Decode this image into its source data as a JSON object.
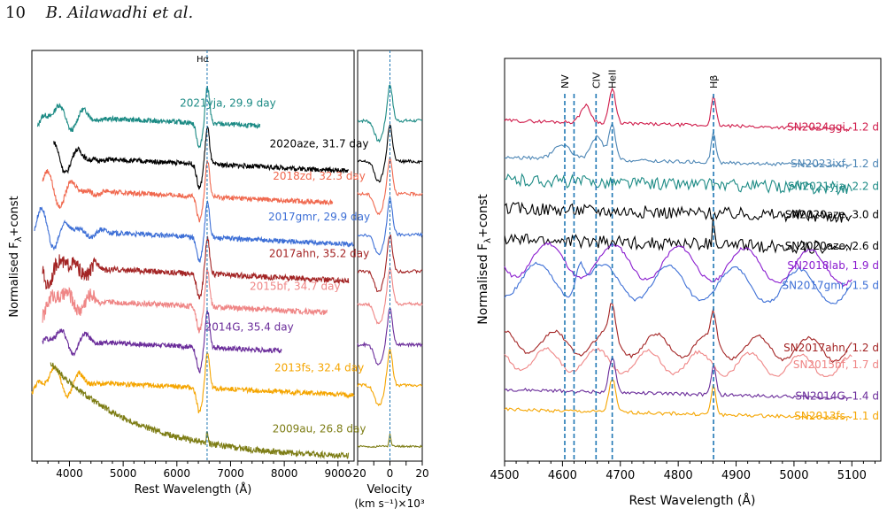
{
  "header": {
    "page_number": "10",
    "authors": "B. Ailawadhi et al."
  },
  "colors": {
    "2021yja": "#1b8a84",
    "2020aze": "#000000",
    "2018zd": "#f0684e",
    "2017gmr": "#3d6fd6",
    "2017ahn": "#a32424",
    "2015bf": "#ef8686",
    "2014G": "#6a2c9a",
    "2013fs": "#f5a500",
    "2009au": "#7d7d15",
    "2024ggi": "#d01c4b",
    "2023ixf": "#4d86b5",
    "2018lab": "#8a1ccf"
  },
  "chart_data": [
    {
      "type": "line",
      "panel": "left",
      "xlabel": "Rest Wavelength (Å)",
      "ylabel": "Normalised F",
      "ylabel_sub": "λ",
      "ylabel_suffix": "+const",
      "xlim": [
        3300,
        9300
      ],
      "xticks": [
        4000,
        5000,
        6000,
        7000,
        8000,
        9000
      ],
      "vline": {
        "x": 6563,
        "label": "Hα"
      },
      "series": [
        {
          "label": "2021yja, 29.9 day",
          "key": "2021yja",
          "x_range": [
            3400,
            7550
          ],
          "offset": 8.1
        },
        {
          "label": "2020aze, 31.7 day",
          "key": "2020aze",
          "x_range": [
            3700,
            9200
          ],
          "offset": 7.1
        },
        {
          "label": "2018zd, 32.3 day",
          "key": "2018zd",
          "x_range": [
            3500,
            8900
          ],
          "offset": 6.3
        },
        {
          "label": "2017gmr, 29.9 day",
          "key": "2017gmr",
          "x_range": [
            3350,
            9300
          ],
          "offset": 5.3
        },
        {
          "label": "2017ahn, 35.2 day",
          "key": "2017ahn",
          "x_range": [
            3500,
            9200
          ],
          "offset": 4.4
        },
        {
          "label": "2015bf, 34.7 day",
          "key": "2015bf",
          "x_range": [
            3500,
            8800
          ],
          "offset": 3.6
        },
        {
          "label": "2014G, 35.4 day",
          "key": "2014G",
          "x_range": [
            3500,
            7950
          ],
          "offset": 2.6
        },
        {
          "label": "2013fs, 32.4 day",
          "key": "2013fs",
          "x_range": [
            3300,
            9300
          ],
          "offset": 1.6
        },
        {
          "label": "2009au, 26.8 day",
          "key": "2009au",
          "x_range": [
            3650,
            9200
          ],
          "offset": 0.1
        }
      ]
    },
    {
      "type": "line",
      "panel": "velocity",
      "xlabel_line1": "Velocity",
      "xlabel_line2": "(km s⁻¹)×10³",
      "xlim": [
        -20,
        20
      ],
      "xticks": [
        -20,
        -10,
        0,
        10,
        20
      ],
      "vline": {
        "x": 0
      }
    },
    {
      "type": "line",
      "panel": "right",
      "xlabel": "Rest Wavelength (Å)",
      "ylabel": "Normalised F",
      "ylabel_sub": "λ",
      "ylabel_suffix": "+const",
      "xlim": [
        4500,
        5150
      ],
      "xticks": [
        4500,
        4600,
        4700,
        4800,
        4900,
        5000,
        5100
      ],
      "lines": [
        {
          "x": 4604,
          "label": "NV"
        },
        {
          "x": 4620,
          "label": ""
        },
        {
          "x": 4658,
          "label": "CIV"
        },
        {
          "x": 4686,
          "label": "HeII"
        },
        {
          "x": 4861,
          "label": "Hβ"
        }
      ],
      "series": [
        {
          "label": "SN2024ggi, 1.2 d",
          "key": "2024ggi",
          "offset": 11.4
        },
        {
          "label": "SN2023ixf, 1.2 d",
          "key": "2023ixf",
          "offset": 10.1
        },
        {
          "label": "SN2021yja, 2.2 d",
          "key": "2021yja",
          "offset": 9.3
        },
        {
          "label": "SN2020aze, 3.0 d",
          "key": "2020aze",
          "offset": 8.3
        },
        {
          "label": "SN2020aze, 2.6 d",
          "key": "2020aze",
          "offset": 7.2
        },
        {
          "label": "SN2018lab, 1.9 d",
          "key": "2018lab",
          "offset": 6.5
        },
        {
          "label": "SN2017gmr, 1.5 d",
          "key": "2017gmr",
          "offset": 5.8
        },
        {
          "label": "SN2017ahn, 1.2 d",
          "key": "2017ahn",
          "offset": 3.6
        },
        {
          "label": "SN2015bf, 1.7 d",
          "key": "2015bf",
          "offset": 3.0
        },
        {
          "label": "SN2014G, 1.4 d",
          "key": "2014G",
          "offset": 1.9
        },
        {
          "label": "SN2013fs, 1.1 d",
          "key": "2013fs",
          "offset": 1.2
        }
      ]
    }
  ]
}
